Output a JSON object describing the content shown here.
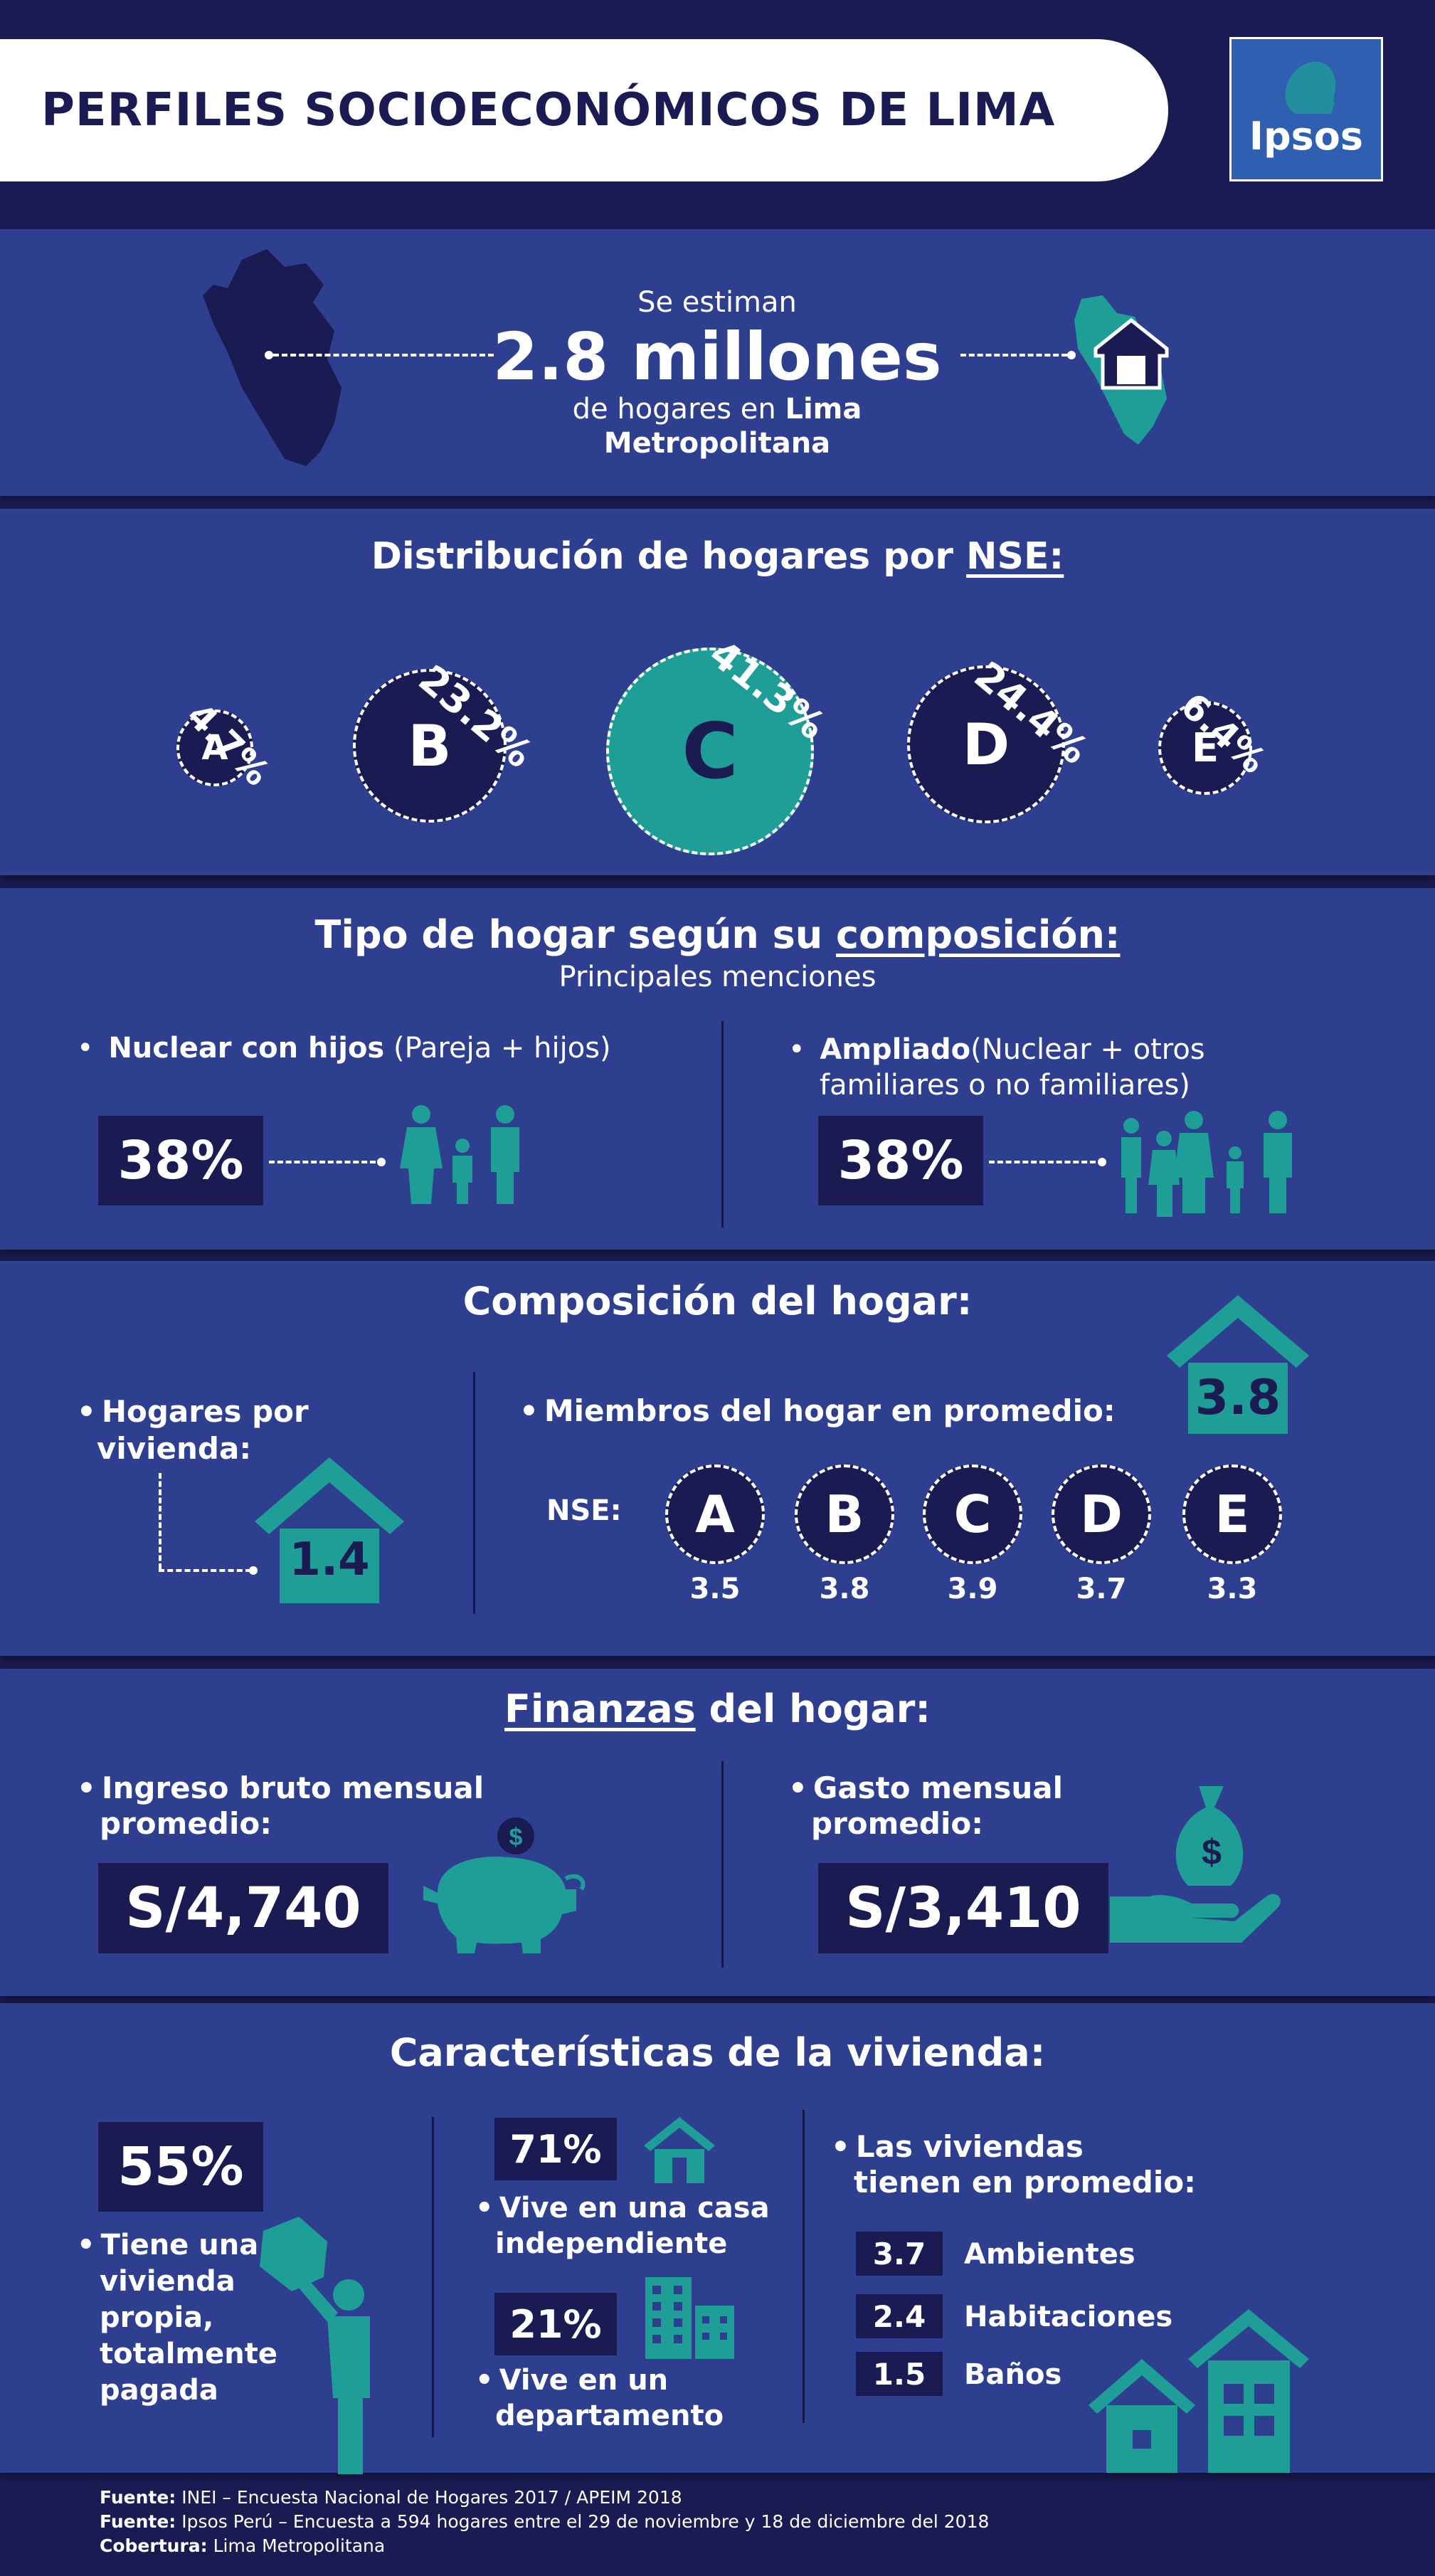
{
  "header": {
    "title": "PERFILES SOCIOECONÓMICOS DE LIMA",
    "logo_text": "Ipsos"
  },
  "intro": {
    "line1": "Se estiman",
    "big": "2.8 millones",
    "line3a": "de hogares en ",
    "line3b": "Lima",
    "line4": "Metropolitana"
  },
  "nse_dist": {
    "title_prefix": "Distribución de hogares por ",
    "title_u": "NSE:",
    "items": [
      {
        "letter": "A",
        "pct": "4.7%"
      },
      {
        "letter": "B",
        "pct": "23.2%"
      },
      {
        "letter": "C",
        "pct": "41.3%"
      },
      {
        "letter": "D",
        "pct": "24.4%"
      },
      {
        "letter": "E",
        "pct": "6.4%"
      }
    ]
  },
  "tipo": {
    "title_prefix": "Tipo de hogar según su ",
    "title_u": "composición:",
    "subtitle": "Principales menciones",
    "left_bold": "Nuclear con hijos",
    "left_rest": " (Pareja + hijos)",
    "left_value": "38%",
    "right_bold": "Ampliado",
    "right_rest1": "(Nuclear + otros",
    "right_rest2": "familiares o no familiares)",
    "right_value": "38%"
  },
  "composicion": {
    "title": "Composición del hogar:",
    "hogares_label1": "Hogares por",
    "hogares_label2": "vivienda:",
    "hogares_value": "1.4",
    "miembros_label": "Miembros del hogar en promedio:",
    "miembros_value": "3.8",
    "nse_label": "NSE:",
    "nse": [
      {
        "letter": "A",
        "value": "3.5"
      },
      {
        "letter": "B",
        "value": "3.8"
      },
      {
        "letter": "C",
        "value": "3.9"
      },
      {
        "letter": "D",
        "value": "3.7"
      },
      {
        "letter": "E",
        "value": "3.3"
      }
    ]
  },
  "finanzas": {
    "title_u": "Finanzas",
    "title_rest": " del hogar:",
    "ingreso_label1": "Ingreso bruto mensual",
    "ingreso_label2": "promedio:",
    "ingreso_value": "S/4,740",
    "gasto_label1": "Gasto mensual",
    "gasto_label2": "promedio:",
    "gasto_value": "S/3,410",
    "dollar": "$"
  },
  "vivienda": {
    "title": "Características de la vivienda:",
    "propia_value": "55%",
    "propia_label": [
      "Tiene una",
      "vivienda",
      "propia,",
      "totalmente",
      "pagada"
    ],
    "casa_value": "71%",
    "casa_label1": "Vive en una casa",
    "casa_label2": "independiente",
    "depto_value": "21%",
    "depto_label1": "Vive en un",
    "depto_label2": "departamento",
    "promedio_label1": "Las viviendas",
    "promedio_label2": "tienen en promedio:",
    "promedio": [
      {
        "value": "3.7",
        "label": "Ambientes"
      },
      {
        "value": "2.4",
        "label": "Habitaciones"
      },
      {
        "value": "1.5",
        "label": "Baños"
      }
    ]
  },
  "footer": {
    "lines": [
      {
        "bold": "Fuente:",
        "text": " INEI – Encuesta Nacional de Hogares 2017 / APEIM 2018"
      },
      {
        "bold": "Fuente:",
        "text": " Ipsos Perú – Encuesta a 594 hogares entre el 29 de noviembre y 18 de diciembre del 2018"
      },
      {
        "bold": "Cobertura:",
        "text": " Lima Metropolitana"
      }
    ]
  },
  "colors": {
    "background": "#1a1b52",
    "panel": "#2e3f8f",
    "accent": "#1f9e98"
  }
}
